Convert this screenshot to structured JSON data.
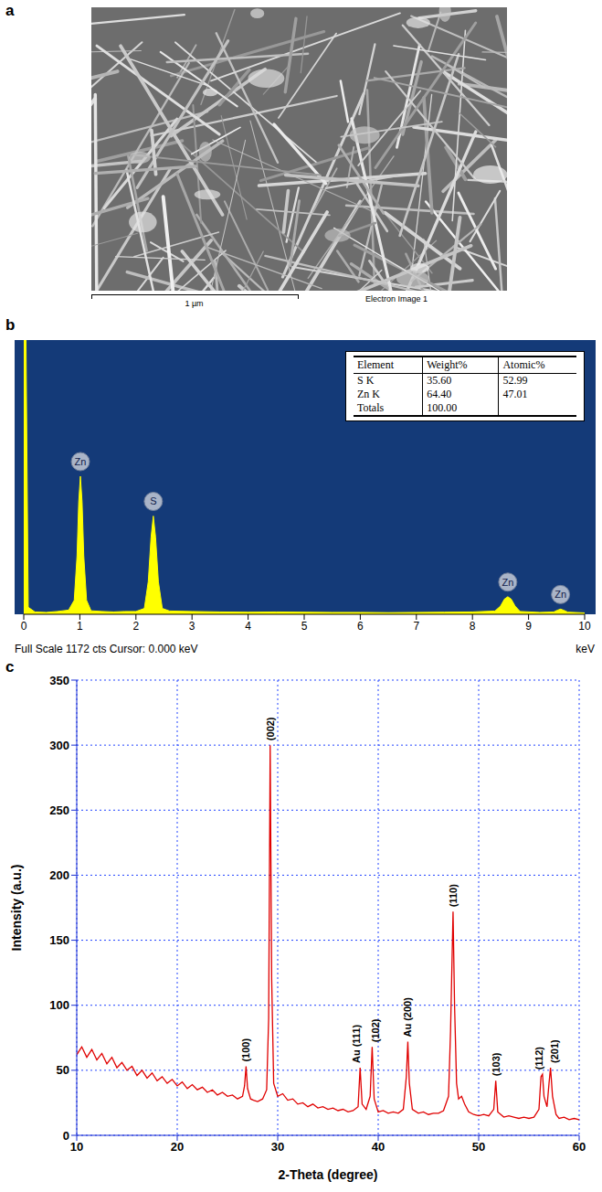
{
  "chart_data": [
    {
      "type": "image",
      "label": "a",
      "scale_bar": "1 µm",
      "caption": "Electron Image 1"
    },
    {
      "type": "area",
      "label": "b",
      "color": "#ffff00",
      "x": [
        0,
        0.04,
        0.08,
        0.2,
        0.4,
        0.6,
        0.8,
        0.9,
        0.95,
        0.98,
        1.01,
        1.04,
        1.07,
        1.12,
        1.2,
        1.4,
        1.6,
        1.8,
        2.0,
        2.15,
        2.22,
        2.27,
        2.31,
        2.35,
        2.4,
        2.47,
        2.6,
        3,
        3.5,
        4,
        4.5,
        5,
        5.5,
        6,
        6.5,
        7,
        7.5,
        8,
        8.4,
        8.5,
        8.57,
        8.63,
        8.69,
        8.76,
        8.85,
        9.2,
        9.45,
        9.52,
        9.57,
        9.62,
        9.7,
        10
      ],
      "values": [
        1172,
        1172,
        30,
        10,
        8,
        12,
        18,
        60,
        250,
        480,
        590,
        480,
        250,
        60,
        15,
        12,
        10,
        12,
        12,
        25,
        140,
        330,
        420,
        330,
        140,
        25,
        14,
        12,
        10,
        9,
        10,
        9,
        8,
        8,
        7,
        8,
        9,
        10,
        14,
        35,
        65,
        75,
        65,
        35,
        12,
        8,
        10,
        18,
        22,
        18,
        9,
        6
      ],
      "xlim": [
        0,
        10
      ],
      "xticks": [
        0,
        1,
        2,
        3,
        4,
        5,
        6,
        7,
        8,
        9,
        10
      ],
      "ylim": [
        0,
        1172
      ],
      "tick_labels": "x",
      "xlabel": "keV",
      "footer": "Full Scale 1172 cts  Cursor: 0.000 keV",
      "annotations": [
        {
          "text": "Zn",
          "x": 1.01,
          "y": 590
        },
        {
          "text": "S",
          "x": 2.31,
          "y": 420
        },
        {
          "text": "Zn",
          "x": 8.63,
          "y": 75
        },
        {
          "text": "Zn",
          "x": 9.57,
          "y": 22
        }
      ],
      "table": {
        "columns": [
          "Element",
          "Weight%",
          "Atomic%"
        ],
        "rows": [
          [
            "S K",
            "35.60",
            "52.99"
          ],
          [
            "Zn K",
            "64.40",
            "47.01"
          ],
          [
            "Totals",
            "100.00"
          ]
        ]
      }
    },
    {
      "type": "line",
      "label": "c",
      "color": "#e00000",
      "xlabel": "2-Theta (degree)",
      "ylabel": "Intensity (a.u.)",
      "x": [
        10,
        10.5,
        11,
        11.5,
        12,
        12.5,
        13,
        13.5,
        14,
        14.5,
        15,
        15.5,
        16,
        16.5,
        17,
        17.5,
        18,
        18.5,
        19,
        19.5,
        20,
        20.5,
        21,
        21.5,
        22,
        22.5,
        23,
        23.5,
        24,
        24.5,
        25,
        25.5,
        26,
        26.5,
        26.7,
        26.85,
        27,
        27.3,
        27.6,
        28,
        28.5,
        28.9,
        29.1,
        29.25,
        29.4,
        29.6,
        30,
        30.5,
        31,
        31.5,
        32,
        32.5,
        33,
        33.5,
        34,
        34.5,
        35,
        35.5,
        36,
        36.5,
        37,
        37.5,
        38,
        38.2,
        38.4,
        38.8,
        39.2,
        39.4,
        39.6,
        40,
        40.5,
        41,
        41.5,
        42,
        42.5,
        42.8,
        42.95,
        43.1,
        43.4,
        44,
        44.5,
        45,
        45.5,
        46,
        46.5,
        47,
        47.2,
        47.45,
        47.6,
        47.8,
        48,
        48.3,
        48.6,
        49,
        49.5,
        50,
        50.5,
        51,
        51.5,
        51.7,
        51.9,
        52.5,
        53,
        53.5,
        54,
        54.5,
        55,
        55.5,
        56,
        56.2,
        56.35,
        56.5,
        56.8,
        57,
        57.15,
        57.35,
        57.7,
        58,
        58.5,
        59,
        59.5,
        60
      ],
      "values": [
        62,
        68,
        60,
        66,
        58,
        63,
        55,
        60,
        52,
        56,
        50,
        53,
        46,
        50,
        44,
        48,
        42,
        45,
        40,
        43,
        38,
        41,
        36,
        39,
        35,
        37,
        33,
        35,
        31,
        33,
        30,
        31,
        28,
        30,
        38,
        53,
        36,
        28,
        27,
        26,
        28,
        35,
        90,
        300,
        120,
        40,
        30,
        32,
        27,
        28,
        24,
        25,
        22,
        24,
        21,
        22,
        20,
        21,
        19,
        20,
        18,
        19,
        22,
        52,
        24,
        20,
        30,
        68,
        28,
        18,
        19,
        17,
        18,
        17,
        20,
        45,
        72,
        40,
        20,
        17,
        18,
        16,
        17,
        17,
        19,
        30,
        80,
        172,
        100,
        40,
        28,
        30,
        24,
        18,
        16,
        15,
        16,
        15,
        20,
        42,
        18,
        14,
        15,
        14,
        13,
        14,
        13,
        14,
        20,
        45,
        47,
        30,
        22,
        40,
        52,
        30,
        16,
        13,
        14,
        12,
        13,
        12
      ],
      "xlim": [
        10,
        60
      ],
      "xticks": [
        10,
        20,
        30,
        40,
        50,
        60
      ],
      "ylim": [
        0,
        350
      ],
      "yticks": [
        0,
        50,
        100,
        150,
        200,
        250,
        300,
        350
      ],
      "grid": true,
      "annotations": [
        {
          "text": "(100)",
          "x": 26.85,
          "y": 53
        },
        {
          "text": "(002)",
          "x": 29.25,
          "y": 300
        },
        {
          "text": "Au (111)",
          "x": 38.2,
          "y": 52
        },
        {
          "text": "(102)",
          "x": 39.4,
          "y": 68
        },
        {
          "text": "Au (200)",
          "x": 42.95,
          "y": 72
        },
        {
          "text": "(110)",
          "x": 47.45,
          "y": 172
        },
        {
          "text": "(103)",
          "x": 51.7,
          "y": 42
        },
        {
          "text": "(112)",
          "x": 56.35,
          "y": 47
        },
        {
          "text": "(201)",
          "x": 57.15,
          "y": 52
        }
      ]
    }
  ]
}
